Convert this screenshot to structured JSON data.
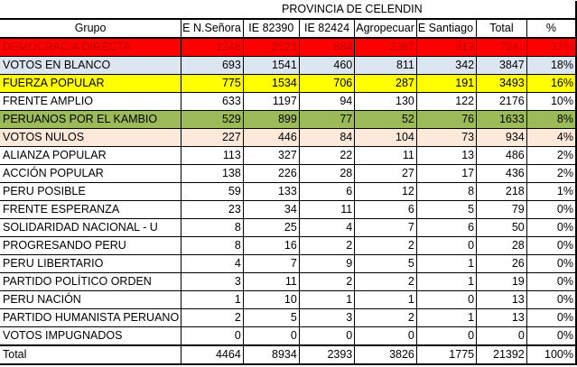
{
  "title": "PROVINCIA DE CELENDIN",
  "headers": [
    "Grupo",
    "E N.Señora",
    "IE 82390",
    "IE 82424",
    "Agropecuar",
    "E Santiago",
    "Total",
    "%"
  ],
  "colors": {
    "red": "#ff0000",
    "red_text": "#c00000",
    "light_blue": "#dce6f1",
    "yellow": "#ffff00",
    "green": "#9bbb59",
    "peach": "#fde9d9",
    "white": "#ffffff"
  },
  "rows": [
    {
      "name": "DEMOCRACIA DIRECTA",
      "values": [
        "1248",
        "2523",
        "884",
        "2367",
        "919",
        "7941",
        "37%"
      ],
      "bg": "#ff0000",
      "fg": "#c00000"
    },
    {
      "name": "VOTOS EN BLANCO",
      "values": [
        "693",
        "1541",
        "460",
        "811",
        "342",
        "3847",
        "18%"
      ],
      "bg": "#dce6f1",
      "fg": "#000000"
    },
    {
      "name": "FUERZA POPULAR",
      "values": [
        "775",
        "1534",
        "706",
        "287",
        "191",
        "3493",
        "16%"
      ],
      "bg": "#ffff00",
      "fg": "#000000"
    },
    {
      "name": "FRENTE AMPLIO",
      "values": [
        "633",
        "1197",
        "94",
        "130",
        "122",
        "2176",
        "10%"
      ],
      "bg": "#ffffff",
      "fg": "#000000"
    },
    {
      "name": "PERUANOS POR EL KAMBIO",
      "values": [
        "529",
        "899",
        "77",
        "52",
        "76",
        "1633",
        "8%"
      ],
      "bg": "#9bbb59",
      "fg": "#000000"
    },
    {
      "name": "VOTOS NULOS",
      "values": [
        "227",
        "446",
        "84",
        "104",
        "73",
        "934",
        "4%"
      ],
      "bg": "#fde9d9",
      "fg": "#000000"
    },
    {
      "name": "ALIANZA POPULAR",
      "values": [
        "113",
        "327",
        "22",
        "11",
        "13",
        "486",
        "2%"
      ],
      "bg": "#ffffff",
      "fg": "#000000"
    },
    {
      "name": "ACCIÓN POPULAR",
      "values": [
        "138",
        "226",
        "28",
        "27",
        "17",
        "436",
        "2%"
      ],
      "bg": "#ffffff",
      "fg": "#000000"
    },
    {
      "name": "PERU POSIBLE",
      "values": [
        "59",
        "133",
        "6",
        "12",
        "8",
        "218",
        "1%"
      ],
      "bg": "#ffffff",
      "fg": "#000000"
    },
    {
      "name": "FRENTE ESPERANZA",
      "values": [
        "23",
        "34",
        "11",
        "6",
        "5",
        "79",
        "0%"
      ],
      "bg": "#ffffff",
      "fg": "#000000"
    },
    {
      "name": "SOLIDARIDAD NACIONAL - U",
      "values": [
        "8",
        "25",
        "4",
        "7",
        "6",
        "50",
        "0%"
      ],
      "bg": "#ffffff",
      "fg": "#000000"
    },
    {
      "name": "PROGRESANDO PERU",
      "values": [
        "8",
        "16",
        "2",
        "2",
        "0",
        "28",
        "0%"
      ],
      "bg": "#ffffff",
      "fg": "#000000"
    },
    {
      "name": "PERU LIBERTARIO",
      "values": [
        "4",
        "7",
        "9",
        "5",
        "1",
        "26",
        "0%"
      ],
      "bg": "#ffffff",
      "fg": "#000000"
    },
    {
      "name": "PARTIDO POLÍTICO ORDEN",
      "values": [
        "3",
        "11",
        "2",
        "2",
        "1",
        "19",
        "0%"
      ],
      "bg": "#ffffff",
      "fg": "#000000"
    },
    {
      "name": "PERU NACIÓN",
      "values": [
        "1",
        "10",
        "1",
        "1",
        "0",
        "13",
        "0%"
      ],
      "bg": "#ffffff",
      "fg": "#000000"
    },
    {
      "name": "PARTIDO HUMANISTA PERUANO",
      "values": [
        "2",
        "5",
        "3",
        "2",
        "1",
        "13",
        "0%"
      ],
      "bg": "#ffffff",
      "fg": "#000000"
    },
    {
      "name": "VOTOS IMPUGNADOS",
      "values": [
        "0",
        "0",
        "0",
        "0",
        "0",
        "0",
        "0%"
      ],
      "bg": "#ffffff",
      "fg": "#000000"
    }
  ],
  "total": {
    "name": "Total",
    "values": [
      "4464",
      "8934",
      "2393",
      "3826",
      "1775",
      "21392",
      "100%"
    ]
  }
}
